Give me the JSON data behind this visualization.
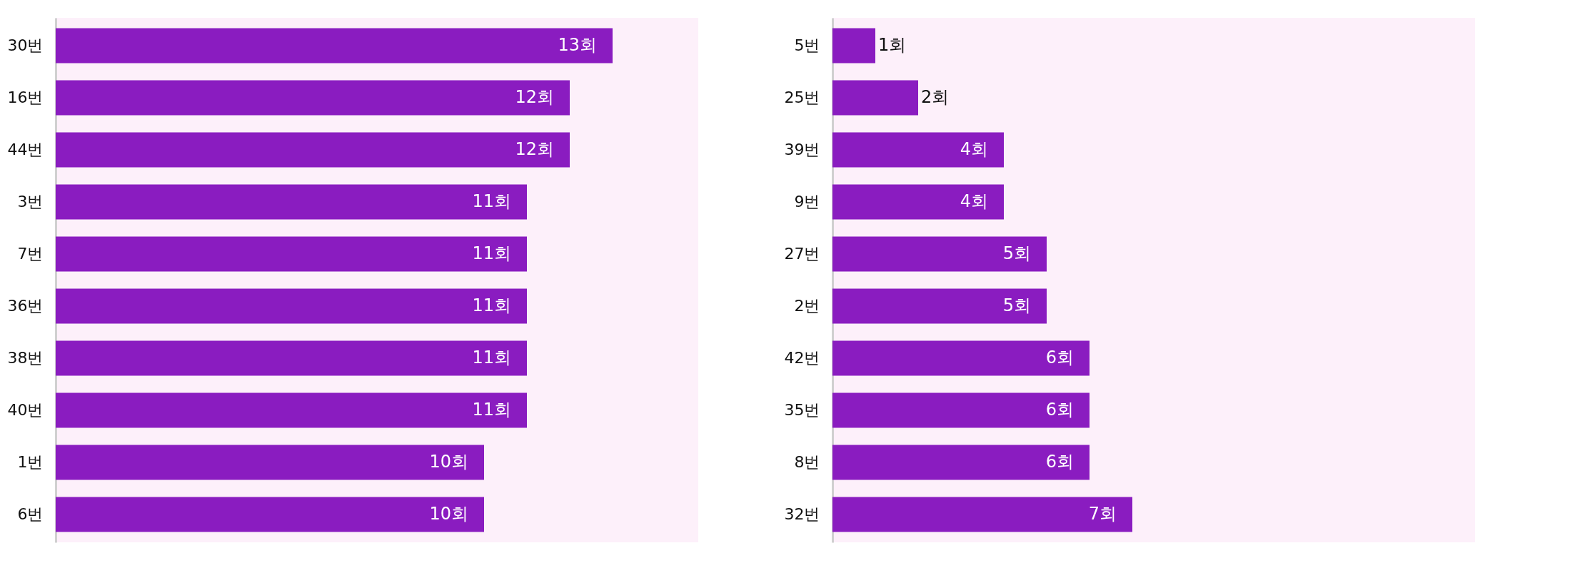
{
  "chart_data": [
    {
      "type": "bar",
      "orientation": "horizontal",
      "xlim": [
        0,
        15
      ],
      "categories": [
        "30번",
        "16번",
        "44번",
        "3번",
        "7번",
        "36번",
        "38번",
        "40번",
        "1번",
        "6번"
      ],
      "series": [
        {
          "color": "#8a1cc0",
          "values": [
            13,
            12,
            12,
            11,
            11,
            11,
            11,
            11,
            10,
            10
          ],
          "value_labels": [
            "13회",
            "12회",
            "12회",
            "11회",
            "11회",
            "11회",
            "11회",
            "11회",
            "10회",
            "10회"
          ]
        }
      ]
    },
    {
      "type": "bar",
      "orientation": "horizontal",
      "xlim": [
        0,
        15
      ],
      "categories": [
        "5번",
        "25번",
        "39번",
        "9번",
        "27번",
        "2번",
        "42번",
        "35번",
        "8번",
        "32번"
      ],
      "series": [
        {
          "color": "#8a1cc0",
          "values": [
            1,
            2,
            4,
            4,
            5,
            5,
            6,
            6,
            6,
            7
          ],
          "value_labels": [
            "1회",
            "2회",
            "4회",
            "4회",
            "5회",
            "5회",
            "6회",
            "6회",
            "6회",
            "7회"
          ]
        }
      ]
    }
  ]
}
